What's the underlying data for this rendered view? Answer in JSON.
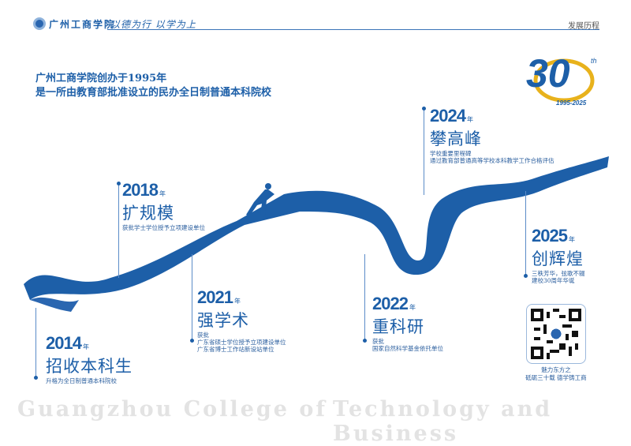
{
  "header": {
    "school_name": "广州工商学院",
    "motto": "以德为行 以学为上",
    "section": "发展历程"
  },
  "intro": [
    "广州工商学院创办于1995年",
    "是一所由教育部批准设立的民办全日制普通本科院校"
  ],
  "anniversary": {
    "number": "30",
    "suffix": "th",
    "years": "1995-2025"
  },
  "milestones": [
    {
      "year": "2014",
      "unit": "年",
      "title": "招收本科生",
      "desc": [
        "升格为全日制普通本科院校"
      ]
    },
    {
      "year": "2018",
      "unit": "年",
      "title": "扩规模",
      "desc": [
        "获批学士学位授予立项建设单位"
      ]
    },
    {
      "year": "2021",
      "unit": "年",
      "title": "强学术",
      "desc": [
        "获批",
        "广东省硕士学位授予立项建设单位",
        "广东省博士工作站新设站单位"
      ]
    },
    {
      "year": "2022",
      "unit": "年",
      "title": "重科研",
      "desc": [
        "获批",
        "国家自然科学基金依托单位"
      ]
    },
    {
      "year": "2024",
      "unit": "年",
      "title": "攀高峰",
      "desc": [
        "学校重要里程碑",
        "通过教育部普通高等学校本科教学工作合格评估"
      ]
    },
    {
      "year": "2025",
      "unit": "年",
      "title": "创辉煌",
      "desc": [
        "三秩芳华，弦歌不辍",
        "建校30周年华诞"
      ]
    }
  ],
  "qr_caption": [
    "魅力东方之",
    "砥砺三十载 德学铸工商"
  ],
  "footer": {
    "left": "Guangzhou College of",
    "right": "Technology and Business"
  },
  "colors": {
    "brand": "#1d5fa8",
    "gold": "#e8b21c"
  }
}
